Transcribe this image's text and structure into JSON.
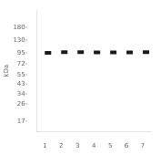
{
  "chart_data": {
    "type": "scatter",
    "y_label": "kDa",
    "categories": [
      "1",
      "2",
      "3",
      "4",
      "5",
      "6",
      "7"
    ],
    "values": [
      95,
      97,
      97,
      96,
      96,
      96,
      97
    ],
    "color": "#1a1a1a",
    "marker": "dash",
    "log": "y",
    "ylim": [
      13,
      280
    ],
    "yticks": [
      {
        "value": 180,
        "label": "180-"
      },
      {
        "value": 130,
        "label": "130-"
      },
      {
        "value": 95,
        "label": "95-"
      },
      {
        "value": 72,
        "label": "72-"
      },
      {
        "value": 55,
        "label": "55-"
      },
      {
        "value": 43,
        "label": "43-"
      },
      {
        "value": 34,
        "label": "34-"
      },
      {
        "value": 26,
        "label": "26-"
      },
      {
        "value": 17,
        "label": "17-"
      }
    ],
    "grid": false
  }
}
